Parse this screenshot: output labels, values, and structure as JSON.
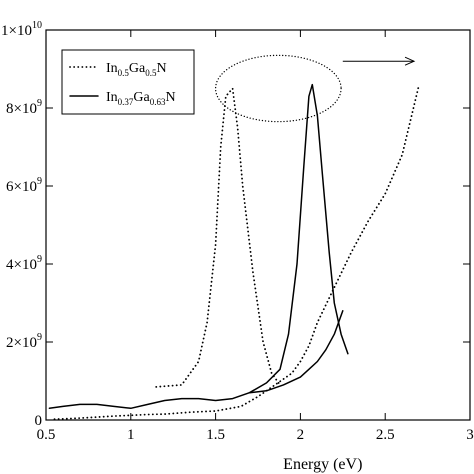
{
  "chart_data": {
    "type": "line",
    "xlabel": "Energy (eV)",
    "ylabel": "",
    "xlim": [
      0.5,
      3.0
    ],
    "ylim": [
      0,
      10000000000.0
    ],
    "x_ticks": [
      {
        "value": 0.5,
        "label": "0.5"
      },
      {
        "value": 1.0,
        "label": "1"
      },
      {
        "value": 1.5,
        "label": "1.5"
      },
      {
        "value": 2.0,
        "label": "2"
      },
      {
        "value": 2.5,
        "label": "2.5"
      },
      {
        "value": 3.0,
        "label": "3"
      }
    ],
    "y_ticks": [
      {
        "value": 0,
        "label": "0",
        "mantissa": "",
        "exponent": ""
      },
      {
        "value": 2000000000.0,
        "label": "2×10⁹",
        "mantissa": "2×10",
        "exponent": "9"
      },
      {
        "value": 4000000000.0,
        "label": "4×10⁹",
        "mantissa": "4×10",
        "exponent": "9"
      },
      {
        "value": 6000000000.0,
        "label": "6×10⁹",
        "mantissa": "6×10",
        "exponent": "9"
      },
      {
        "value": 8000000000.0,
        "label": "8×10⁹",
        "mantissa": "8×10",
        "exponent": "9"
      },
      {
        "value": 10000000000.0,
        "label": "1×10¹⁰",
        "mantissa": "1×10",
        "exponent": "10"
      }
    ],
    "legend_position": "top-left",
    "series": [
      {
        "legend": {
          "base1": "In",
          "sub1": "0.5",
          "base2": "Ga",
          "sub2": "0.5",
          "base3": "N"
        },
        "style": "dotted",
        "color": "#000000",
        "segments": [
          [
            [
              0.55,
              20000000.0
            ],
            [
              0.7,
              50000000.0
            ],
            [
              0.9,
              100000000.0
            ],
            [
              1.0,
              120000000.0
            ],
            [
              1.1,
              140000000.0
            ],
            [
              1.2,
              150000000.0
            ],
            [
              1.35,
              200000000.0
            ],
            [
              1.5,
              230000000.0
            ],
            [
              1.65,
              350000000.0
            ],
            [
              1.75,
              600000000.0
            ],
            [
              1.85,
              900000000.0
            ],
            [
              1.95,
              1200000000.0
            ],
            [
              2.0,
              1500000000.0
            ],
            [
              2.05,
              1900000000.0
            ],
            [
              2.1,
              2500000000.0
            ],
            [
              2.2,
              3400000000.0
            ],
            [
              2.3,
              4300000000.0
            ],
            [
              2.4,
              5100000000.0
            ],
            [
              2.5,
              5800000000.0
            ],
            [
              2.6,
              6800000000.0
            ],
            [
              2.7,
              8600000000.0
            ]
          ],
          [
            [
              1.15,
              850000000.0
            ],
            [
              1.3,
              900000000.0
            ],
            [
              1.4,
              1500000000.0
            ],
            [
              1.45,
              2500000000.0
            ],
            [
              1.5,
              4500000000.0
            ],
            [
              1.53,
              7000000000.0
            ],
            [
              1.56,
              8300000000.0
            ],
            [
              1.6,
              8500000000.0
            ],
            [
              1.63,
              7500000000.0
            ],
            [
              1.66,
              6000000000.0
            ],
            [
              1.72,
              3800000000.0
            ],
            [
              1.78,
              2000000000.0
            ],
            [
              1.83,
              1200000000.0
            ],
            [
              1.88,
              900000000.0
            ]
          ]
        ]
      },
      {
        "legend": {
          "base1": "In",
          "sub1": "0.37",
          "base2": "Ga",
          "sub2": "0.63",
          "base3": "N"
        },
        "style": "solid",
        "color": "#000000",
        "segments": [
          [
            [
              0.52,
              300000000.0
            ],
            [
              0.6,
              350000000.0
            ],
            [
              0.7,
              400000000.0
            ],
            [
              0.8,
              400000000.0
            ],
            [
              0.9,
              350000000.0
            ],
            [
              1.0,
              300000000.0
            ],
            [
              1.1,
              400000000.0
            ],
            [
              1.2,
              500000000.0
            ],
            [
              1.3,
              550000000.0
            ],
            [
              1.4,
              550000000.0
            ],
            [
              1.5,
              500000000.0
            ],
            [
              1.6,
              550000000.0
            ],
            [
              1.7,
              700000000.0
            ],
            [
              1.8,
              750000000.0
            ],
            [
              1.9,
              900000000.0
            ],
            [
              2.0,
              1100000000.0
            ],
            [
              2.05,
              1300000000.0
            ],
            [
              2.1,
              1500000000.0
            ],
            [
              2.15,
              1800000000.0
            ],
            [
              2.2,
              2200000000.0
            ],
            [
              2.25,
              2800000000.0
            ]
          ],
          [
            [
              1.7,
              700000000.0
            ],
            [
              1.8,
              950000000.0
            ],
            [
              1.88,
              1300000000.0
            ],
            [
              1.93,
              2200000000.0
            ],
            [
              1.98,
              4000000000.0
            ],
            [
              2.02,
              6500000000.0
            ],
            [
              2.05,
              8300000000.0
            ],
            [
              2.07,
              8600000000.0
            ],
            [
              2.1,
              7800000000.0
            ],
            [
              2.13,
              6300000000.0
            ],
            [
              2.17,
              4300000000.0
            ],
            [
              2.2,
              3000000000.0
            ],
            [
              2.24,
              2200000000.0
            ],
            [
              2.28,
              1700000000.0
            ]
          ]
        ]
      }
    ],
    "annotations": {
      "ellipse": {
        "cx": 1.87,
        "cy": 8500000000.0,
        "rx": 0.37,
        "ry": 850000000.0,
        "style": "dotted"
      },
      "arrow": {
        "x1": 2.25,
        "x2": 2.67,
        "y": 9200000000.0
      }
    }
  }
}
